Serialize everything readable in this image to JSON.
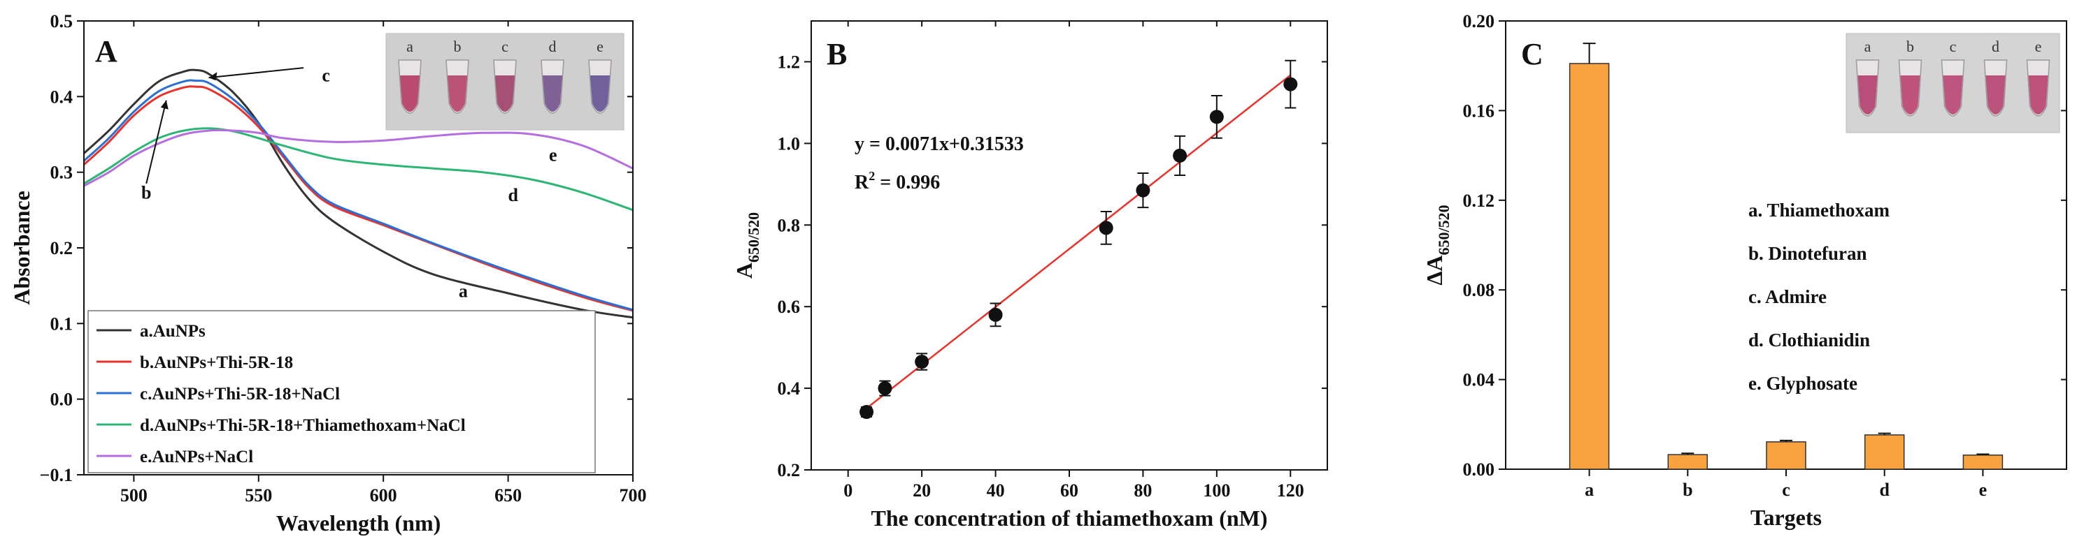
{
  "chart_data": [
    {
      "panel": "A",
      "type": "line",
      "xlabel": "Wavelength (nm)",
      "ylabel": "Absorbance",
      "xlim": [
        480,
        700
      ],
      "ylim": [
        -0.1,
        0.5
      ],
      "xticks": [
        500,
        550,
        600,
        650,
        700
      ],
      "yticks": [
        -0.1,
        0.0,
        0.1,
        0.2,
        0.3,
        0.4,
        0.5
      ],
      "tick_labels_x": [
        "500",
        "550",
        "600",
        "650",
        "700"
      ],
      "tick_labels_y": [
        "−0.1",
        "0.0",
        "0.1",
        "0.2",
        "0.3",
        "0.4",
        "0.5"
      ],
      "legend_position": "bottom-left",
      "series": [
        {
          "key": "a",
          "name": "a.AuNPs",
          "color": "#333333",
          "x": [
            480,
            490,
            500,
            510,
            520,
            525,
            530,
            540,
            550,
            560,
            570,
            580,
            600,
            620,
            650,
            680,
            700
          ],
          "y": [
            0.325,
            0.355,
            0.39,
            0.42,
            0.433,
            0.435,
            0.43,
            0.405,
            0.365,
            0.31,
            0.265,
            0.235,
            0.195,
            0.165,
            0.14,
            0.118,
            0.108
          ]
        },
        {
          "key": "b",
          "name": "b.AuNPs+Thi-5R-18",
          "color": "#e8322b",
          "x": [
            480,
            490,
            500,
            510,
            520,
            525,
            530,
            540,
            550,
            560,
            570,
            580,
            600,
            620,
            650,
            680,
            700
          ],
          "y": [
            0.31,
            0.34,
            0.375,
            0.4,
            0.412,
            0.413,
            0.41,
            0.39,
            0.36,
            0.32,
            0.28,
            0.255,
            0.23,
            0.205,
            0.168,
            0.135,
            0.117
          ]
        },
        {
          "key": "c",
          "name": "c.AuNPs+Thi-5R-18+NaCl",
          "color": "#2a6fd6",
          "x": [
            480,
            490,
            500,
            510,
            520,
            525,
            530,
            540,
            550,
            560,
            570,
            580,
            600,
            620,
            650,
            680,
            700
          ],
          "y": [
            0.315,
            0.345,
            0.38,
            0.407,
            0.42,
            0.421,
            0.418,
            0.396,
            0.364,
            0.323,
            0.283,
            0.258,
            0.232,
            0.206,
            0.17,
            0.137,
            0.118
          ]
        },
        {
          "key": "d",
          "name": "d.AuNPs+Thi-5R-18+Thiamethoxam+NaCl",
          "color": "#2bb673",
          "x": [
            480,
            490,
            500,
            510,
            520,
            530,
            540,
            550,
            560,
            580,
            600,
            620,
            640,
            660,
            680,
            700
          ],
          "y": [
            0.285,
            0.305,
            0.327,
            0.345,
            0.355,
            0.358,
            0.354,
            0.345,
            0.335,
            0.318,
            0.31,
            0.305,
            0.3,
            0.29,
            0.273,
            0.25
          ]
        },
        {
          "key": "e",
          "name": "e.AuNPs+NaCl",
          "color": "#b46ee0",
          "x": [
            480,
            490,
            500,
            510,
            520,
            530,
            540,
            550,
            560,
            580,
            600,
            620,
            640,
            660,
            680,
            700
          ],
          "y": [
            0.282,
            0.3,
            0.322,
            0.338,
            0.35,
            0.355,
            0.355,
            0.352,
            0.345,
            0.34,
            0.342,
            0.348,
            0.352,
            0.35,
            0.335,
            0.305
          ]
        }
      ],
      "annotations": [
        {
          "text": "a",
          "x": 632,
          "y": 0.135
        },
        {
          "text": "b",
          "x": 505,
          "y": 0.265
        },
        {
          "text": "c",
          "x": 577,
          "y": 0.42
        },
        {
          "text": "d",
          "x": 652,
          "y": 0.262
        },
        {
          "text": "e",
          "x": 668,
          "y": 0.315
        }
      ],
      "inset_labels": [
        "a",
        "b",
        "c",
        "d",
        "e"
      ]
    },
    {
      "panel": "B",
      "type": "scatter",
      "xlabel": "The concentration of thiamethoxam (nM)",
      "ylabel_main": "A",
      "ylabel_sub": "650/520",
      "xlim": [
        -10,
        130
      ],
      "ylim": [
        0.2,
        1.3
      ],
      "xticks": [
        0,
        20,
        40,
        60,
        80,
        100,
        120
      ],
      "yticks": [
        0.2,
        0.4,
        0.6,
        0.8,
        1.0,
        1.2
      ],
      "tick_labels_x": [
        "0",
        "20",
        "40",
        "60",
        "80",
        "100",
        "120"
      ],
      "tick_labels_y": [
        "0.2",
        "0.4",
        "0.6",
        "0.8",
        "1.0",
        "1.2"
      ],
      "x": [
        5,
        10,
        20,
        40,
        70,
        80,
        90,
        100,
        120
      ],
      "y": [
        0.342,
        0.4,
        0.465,
        0.58,
        0.793,
        0.885,
        0.97,
        1.065,
        1.145
      ],
      "err": [
        0.012,
        0.018,
        0.02,
        0.028,
        0.04,
        0.042,
        0.048,
        0.052,
        0.058
      ],
      "fit": {
        "slope": 0.0071,
        "intercept": 0.31533,
        "x_range": [
          5,
          120
        ],
        "color": "#e8322b"
      },
      "equation": "y = 0.0071x+0.31533",
      "r2_main": "R",
      "r2_sup": "2",
      "r2_value": " = 0.996"
    },
    {
      "panel": "C",
      "type": "bar",
      "xlabel": "Targets",
      "ylabel_main": "ΔA",
      "ylabel_sub": "650/520",
      "categories": [
        "a",
        "b",
        "c",
        "d",
        "e"
      ],
      "values": [
        0.181,
        0.0065,
        0.0122,
        0.0153,
        0.0063
      ],
      "err": [
        0.009,
        0.0006,
        0.0006,
        0.0007,
        0.0004
      ],
      "ylim": [
        0.0,
        0.2
      ],
      "yticks": [
        0.0,
        0.04,
        0.08,
        0.12,
        0.16,
        0.2
      ],
      "tick_labels_y": [
        "0.00",
        "0.04",
        "0.08",
        "0.12",
        "0.16",
        "0.20"
      ],
      "bar_color": "#f8a340",
      "legend_items": [
        "a. Thiamethoxam",
        "b. Dinotefuran",
        "c. Admire",
        "d. Clothianidin",
        "e. Glyphosate"
      ],
      "inset_labels": [
        "a",
        "b",
        "c",
        "d",
        "e"
      ]
    }
  ]
}
